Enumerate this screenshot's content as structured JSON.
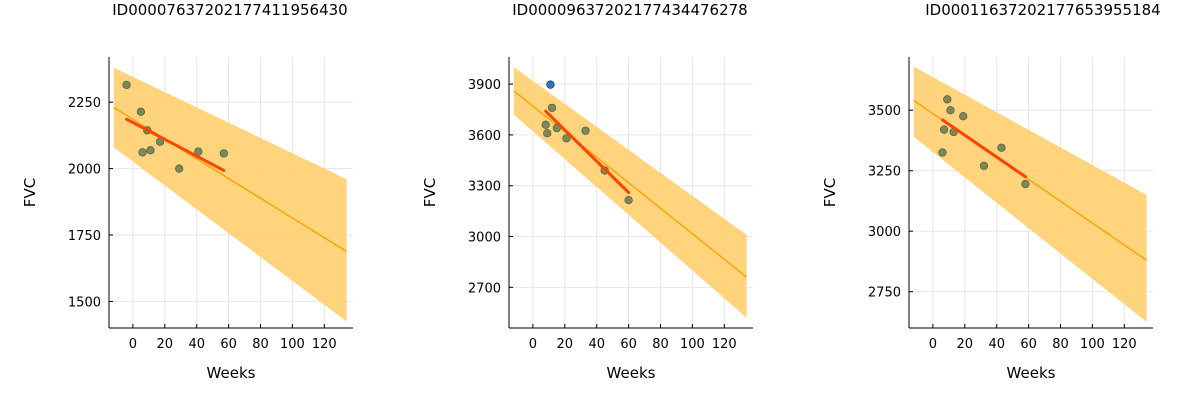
{
  "chart_data": [
    {
      "type": "scatter",
      "title": "ID00007637202177411956430",
      "xlabel": "Weeks",
      "ylabel": "FVC",
      "xlim": [
        -15,
        138
      ],
      "ylim": [
        1400,
        2420
      ],
      "xticks": [
        0,
        20,
        40,
        60,
        80,
        100,
        120
      ],
      "yticks": [
        1500,
        1750,
        2000,
        2250
      ],
      "grid": true,
      "points": [
        {
          "x": -4,
          "y": 2315
        },
        {
          "x": 5,
          "y": 2214
        },
        {
          "x": 6,
          "y": 2061
        },
        {
          "x": 9,
          "y": 2144
        },
        {
          "x": 11,
          "y": 2069
        },
        {
          "x": 17,
          "y": 2101
        },
        {
          "x": 29,
          "y": 2000
        },
        {
          "x": 41,
          "y": 2064
        },
        {
          "x": 57,
          "y": 2057
        }
      ],
      "outliers": [],
      "fit_line": {
        "x": [
          -4,
          57
        ],
        "y": [
          2186,
          1993
        ]
      },
      "trend_line": {
        "x": [
          -12,
          134
        ],
        "y": [
          2230,
          1688
        ]
      },
      "band_upper": {
        "x": [
          -12,
          134
        ],
        "y": [
          2380,
          1960
        ]
      },
      "band_lower": {
        "x": [
          -12,
          134
        ],
        "y": [
          2080,
          1425
        ]
      }
    },
    {
      "type": "scatter",
      "title": "ID00009637202177434476278",
      "xlabel": "Weeks",
      "ylabel": "FVC",
      "xlim": [
        -15,
        138
      ],
      "ylim": [
        2460,
        4060
      ],
      "xticks": [
        0,
        20,
        40,
        60,
        80,
        100,
        120
      ],
      "yticks": [
        2700,
        3000,
        3300,
        3600,
        3900
      ],
      "grid": true,
      "points": [
        {
          "x": 8,
          "y": 3660
        },
        {
          "x": 9,
          "y": 3610
        },
        {
          "x": 12,
          "y": 3760
        },
        {
          "x": 15,
          "y": 3640
        },
        {
          "x": 21,
          "y": 3580
        },
        {
          "x": 33,
          "y": 3625
        },
        {
          "x": 45,
          "y": 3390
        },
        {
          "x": 60,
          "y": 3215
        }
      ],
      "outliers": [
        {
          "x": 11,
          "y": 3897
        }
      ],
      "fit_line": {
        "x": [
          8,
          60
        ],
        "y": [
          3740,
          3260
        ]
      },
      "trend_line": {
        "x": [
          -12,
          134
        ],
        "y": [
          3860,
          2760
        ]
      },
      "band_upper": {
        "x": [
          -12,
          134
        ],
        "y": [
          4000,
          3010
        ]
      },
      "band_lower": {
        "x": [
          -12,
          134
        ],
        "y": [
          3720,
          2520
        ]
      }
    },
    {
      "type": "scatter",
      "title": "ID00011637202177653955184",
      "xlabel": "Weeks",
      "ylabel": "FVC",
      "xlim": [
        -15,
        138
      ],
      "ylim": [
        2600,
        3720
      ],
      "xticks": [
        0,
        20,
        40,
        60,
        80,
        100,
        120
      ],
      "yticks": [
        2750,
        3000,
        3250,
        3500
      ],
      "grid": true,
      "points": [
        {
          "x": 6,
          "y": 3325
        },
        {
          "x": 7,
          "y": 3420
        },
        {
          "x": 9,
          "y": 3545
        },
        {
          "x": 11,
          "y": 3500
        },
        {
          "x": 13,
          "y": 3410
        },
        {
          "x": 19,
          "y": 3475
        },
        {
          "x": 32,
          "y": 3270
        },
        {
          "x": 43,
          "y": 3345
        },
        {
          "x": 58,
          "y": 3195
        }
      ],
      "outliers": [],
      "fit_line": {
        "x": [
          6,
          58
        ],
        "y": [
          3460,
          3225
        ]
      },
      "trend_line": {
        "x": [
          -12,
          134
        ],
        "y": [
          3540,
          2880
        ]
      },
      "band_upper": {
        "x": [
          -12,
          134
        ],
        "y": [
          3680,
          3150
        ]
      },
      "band_lower": {
        "x": [
          -12,
          134
        ],
        "y": [
          3390,
          2625
        ]
      }
    }
  ],
  "colors": {
    "band": "#ffcc66",
    "band_opacity": 0.85,
    "trend": "#ffa500",
    "fit": "#ff4500",
    "point_fill": "#7a8a55",
    "point_stroke": "#4a4a4a",
    "outlier_fill": "#1f78c8",
    "grid": "#e6e6e6"
  }
}
